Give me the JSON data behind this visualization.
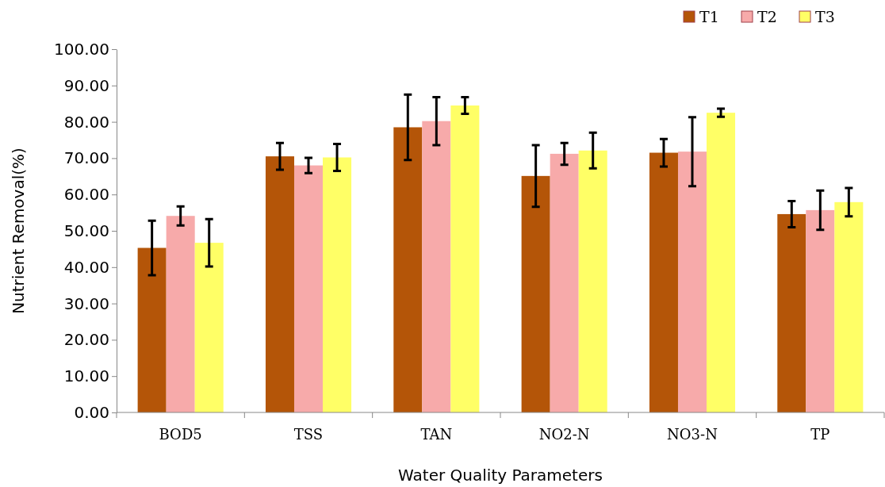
{
  "chart_data": {
    "type": "bar",
    "xlabel": "Water Quality Parameters",
    "ylabel": "Nutrient Removal(%)",
    "categories": [
      "BOD5",
      "TSS",
      "TAN",
      "NO2-N",
      "NO3-N",
      "TP"
    ],
    "series": [
      {
        "name": "T1",
        "color": "#b45508",
        "values": [
          45.3,
          70.5,
          78.5,
          65.1,
          71.5,
          54.6
        ],
        "errors": [
          7.5,
          3.7,
          9.0,
          8.5,
          3.8,
          3.6
        ]
      },
      {
        "name": "T2",
        "color": "#f7aaaa",
        "values": [
          54.1,
          68.0,
          80.2,
          71.2,
          71.8,
          55.7
        ],
        "errors": [
          2.6,
          2.1,
          6.6,
          3.0,
          9.5,
          5.4
        ]
      },
      {
        "name": "T3",
        "color": "#ffff66",
        "values": [
          46.7,
          70.2,
          84.5,
          72.1,
          82.5,
          57.9
        ],
        "errors": [
          6.5,
          3.7,
          2.3,
          4.9,
          1.1,
          3.9
        ]
      }
    ],
    "ylim": [
      0,
      100
    ],
    "yticks": [
      {
        "value": 0,
        "label": "0.00"
      },
      {
        "value": 10,
        "label": "10.00"
      },
      {
        "value": 20,
        "label": "20.00"
      },
      {
        "value": 30,
        "label": "30.00"
      },
      {
        "value": 40,
        "label": "40.00"
      },
      {
        "value": 50,
        "label": "50.00"
      },
      {
        "value": 60,
        "label": "60.00"
      },
      {
        "value": 70,
        "label": "70.00"
      },
      {
        "value": 80,
        "label": "80.00"
      },
      {
        "value": 90,
        "label": "90.00"
      },
      {
        "value": 100,
        "label": "100.00"
      }
    ],
    "grid": false,
    "legend": "top right"
  }
}
